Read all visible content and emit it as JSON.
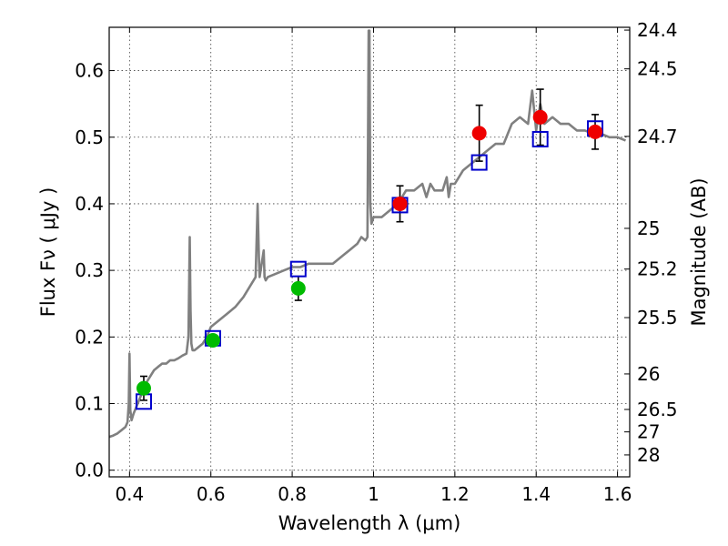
{
  "chart_data": {
    "type": "scatter",
    "xlabel": "Wavelength  λ (μm)",
    "ylabel": "Flux  Fν  ( μJy )",
    "y2label": "Magnitude (AB)",
    "xlim": [
      0.35,
      1.63
    ],
    "ylim": [
      -0.01,
      0.665
    ],
    "x_ticks": [
      0.4,
      0.6,
      0.8,
      1.0,
      1.2,
      1.4,
      1.6
    ],
    "x_tick_labels": [
      "0.4",
      "0.6",
      "0.8",
      "1",
      "1.2",
      "1.4",
      "1.6"
    ],
    "y_ticks": [
      0.0,
      0.1,
      0.2,
      0.3,
      0.4,
      0.5,
      0.6
    ],
    "y_tick_labels": [
      "0.0",
      "0.1",
      "0.2",
      "0.3",
      "0.4",
      "0.5",
      "0.6"
    ],
    "magnitude_ticks": [
      {
        "flux": 0.6608,
        "label": "24.4"
      },
      {
        "flux": 0.6026,
        "label": "24.5"
      },
      {
        "flux": 0.5012,
        "label": "24.7"
      },
      {
        "flux": 0.3631,
        "label": "25"
      },
      {
        "flux": 0.302,
        "label": "25.2"
      },
      {
        "flux": 0.2291,
        "label": "25.5"
      },
      {
        "flux": 0.1445,
        "label": "26"
      },
      {
        "flux": 0.0912,
        "label": "26.5"
      },
      {
        "flux": 0.0575,
        "label": "27"
      },
      {
        "flux": 0.0229,
        "label": "28"
      }
    ],
    "grid": true,
    "colors": {
      "model_spectrum": "#808080",
      "model_photometry": "#0000cc",
      "observed_green": "#00bb00",
      "observed_red": "#ee0000",
      "errorbar": "#000000"
    },
    "series": [
      {
        "name": "Model spectrum",
        "style": "line",
        "color": "#808080",
        "x": [
          0.35,
          0.36,
          0.37,
          0.38,
          0.39,
          0.395,
          0.398,
          0.4,
          0.402,
          0.405,
          0.41,
          0.42,
          0.43,
          0.44,
          0.45,
          0.46,
          0.47,
          0.48,
          0.49,
          0.5,
          0.51,
          0.52,
          0.53,
          0.54,
          0.545,
          0.548,
          0.55,
          0.552,
          0.555,
          0.56,
          0.57,
          0.58,
          0.59,
          0.6,
          0.62,
          0.64,
          0.66,
          0.68,
          0.7,
          0.71,
          0.715,
          0.718,
          0.72,
          0.73,
          0.732,
          0.735,
          0.74,
          0.76,
          0.78,
          0.8,
          0.82,
          0.84,
          0.86,
          0.88,
          0.9,
          0.92,
          0.94,
          0.96,
          0.97,
          0.98,
          0.985,
          0.988,
          0.99,
          0.992,
          0.995,
          1.0,
          1.02,
          1.04,
          1.06,
          1.08,
          1.1,
          1.12,
          1.13,
          1.14,
          1.15,
          1.17,
          1.18,
          1.185,
          1.19,
          1.2,
          1.22,
          1.24,
          1.26,
          1.28,
          1.3,
          1.32,
          1.34,
          1.36,
          1.38,
          1.39,
          1.4,
          1.41,
          1.42,
          1.44,
          1.46,
          1.48,
          1.5,
          1.52,
          1.54,
          1.56,
          1.58,
          1.6,
          1.62
        ],
        "values": [
          0.05,
          0.052,
          0.055,
          0.06,
          0.065,
          0.072,
          0.1,
          0.175,
          0.09,
          0.075,
          0.085,
          0.1,
          0.115,
          0.13,
          0.14,
          0.15,
          0.155,
          0.16,
          0.16,
          0.165,
          0.165,
          0.168,
          0.172,
          0.175,
          0.2,
          0.35,
          0.24,
          0.19,
          0.18,
          0.18,
          0.185,
          0.19,
          0.2,
          0.215,
          0.225,
          0.235,
          0.245,
          0.26,
          0.28,
          0.29,
          0.4,
          0.32,
          0.29,
          0.33,
          0.29,
          0.285,
          0.29,
          0.295,
          0.3,
          0.305,
          0.305,
          0.31,
          0.31,
          0.31,
          0.31,
          0.32,
          0.33,
          0.34,
          0.35,
          0.345,
          0.35,
          0.66,
          0.66,
          0.4,
          0.37,
          0.38,
          0.38,
          0.39,
          0.4,
          0.42,
          0.42,
          0.43,
          0.41,
          0.43,
          0.42,
          0.42,
          0.44,
          0.41,
          0.43,
          0.43,
          0.45,
          0.46,
          0.47,
          0.48,
          0.49,
          0.49,
          0.52,
          0.53,
          0.52,
          0.57,
          0.51,
          0.55,
          0.52,
          0.53,
          0.52,
          0.52,
          0.51,
          0.51,
          0.505,
          0.505,
          0.5,
          0.5,
          0.495
        ]
      },
      {
        "name": "Model photometry",
        "style": "open-square",
        "color": "#0000cc",
        "x": [
          0.435,
          0.605,
          0.815,
          1.065,
          1.26,
          1.41,
          1.545
        ],
        "values": [
          0.103,
          0.198,
          0.302,
          0.398,
          0.462,
          0.497,
          0.513
        ]
      },
      {
        "name": "Observed (green)",
        "style": "filled-circle",
        "color": "#00bb00",
        "x": [
          0.435,
          0.605,
          0.815
        ],
        "values": [
          0.123,
          0.195,
          0.273
        ],
        "errors": [
          0.018,
          0.008,
          0.018
        ]
      },
      {
        "name": "Observed (red)",
        "style": "filled-circle",
        "color": "#ee0000",
        "x": [
          1.065,
          1.26,
          1.41,
          1.545
        ],
        "values": [
          0.4,
          0.506,
          0.53,
          0.508
        ],
        "errors": [
          0.027,
          0.042,
          0.042,
          0.026
        ]
      }
    ]
  }
}
